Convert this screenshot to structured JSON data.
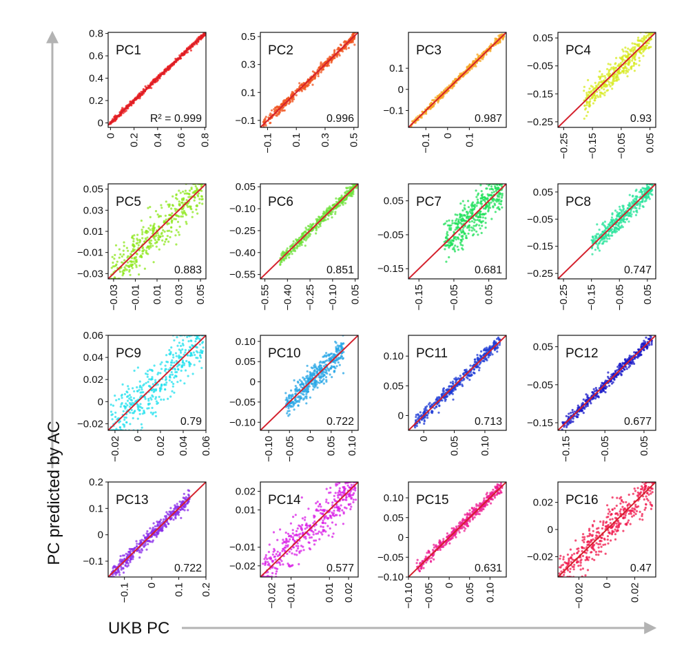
{
  "figure": {
    "ylabel": "PC predicted by AC",
    "xlabel": "UKB PC",
    "arrow_color": "#b3b3b3",
    "identity_line_color": "#d4202c"
  },
  "chart_data": [
    {
      "type": "scatter",
      "title": "PC1",
      "annotation": "R² = 0.999",
      "r2": 0.999,
      "color": "#ee1c1c",
      "spread": 0.01,
      "xlim": [
        -0.02,
        0.81
      ],
      "ylim": [
        -0.04,
        0.81
      ],
      "xticks": [
        "0",
        "0.2",
        "0.4",
        "0.6",
        "0.8"
      ],
      "yticks": [
        "0",
        "0.2",
        "0.4",
        "0.6",
        "0.8"
      ],
      "data_range": [
        -0.01,
        0.8
      ]
    },
    {
      "type": "scatter",
      "title": "PC2",
      "annotation": "0.996",
      "r2": 0.996,
      "color": "#f0521c",
      "spread": 0.018,
      "xlim": [
        -0.15,
        0.53
      ],
      "ylim": [
        -0.15,
        0.53
      ],
      "xticks": [
        "−0.1",
        "0.1",
        "0.3",
        "0.5"
      ],
      "yticks": [
        "−0.1",
        "0.1",
        "0.3",
        "0.5"
      ],
      "data_range": [
        -0.13,
        0.51
      ]
    },
    {
      "type": "scatter",
      "title": "PC3",
      "annotation": "0.987",
      "r2": 0.987,
      "color": "#f5a623",
      "spread": 0.008,
      "xlim": [
        -0.18,
        0.27
      ],
      "ylim": [
        -0.18,
        0.27
      ],
      "xticks": [
        "−0.1",
        "0",
        "0.1"
      ],
      "yticks": [
        "−0.1",
        "0",
        "0.1"
      ],
      "data_range": [
        -0.17,
        0.26
      ]
    },
    {
      "type": "scatter",
      "title": "PC4",
      "annotation": "0.93",
      "r2": 0.93,
      "color": "#d7ea1f",
      "spread": 0.025,
      "xlim": [
        -0.27,
        0.07
      ],
      "ylim": [
        -0.27,
        0.07
      ],
      "xticks": [
        "−0.25",
        "−0.15",
        "−0.05",
        "0.05"
      ],
      "yticks": [
        "−0.25",
        "−0.15",
        "−0.05",
        "0.05"
      ],
      "data_range": [
        -0.18,
        0.06
      ]
    },
    {
      "type": "scatter",
      "title": "PC5",
      "annotation": "0.883",
      "r2": 0.883,
      "color": "#8ee71e",
      "spread": 0.009,
      "xlim": [
        -0.035,
        0.055
      ],
      "ylim": [
        -0.035,
        0.055
      ],
      "xticks": [
        "−0.03",
        "−0.01",
        "0.01",
        "0.03",
        "0.05"
      ],
      "yticks": [
        "−0.03",
        "−0.01",
        "0.01",
        "0.03",
        "0.05"
      ],
      "data_range": [
        -0.033,
        0.052
      ]
    },
    {
      "type": "scatter",
      "title": "PC6",
      "annotation": "0.851",
      "r2": 0.851,
      "color": "#6ee13a",
      "spread": 0.02,
      "xlim": [
        -0.58,
        0.07
      ],
      "ylim": [
        -0.58,
        0.07
      ],
      "xticks": [
        "−0.55",
        "−0.40",
        "−0.25",
        "−0.10",
        "0.05"
      ],
      "yticks": [
        "−0.55",
        "−0.40",
        "−0.25",
        "−0.10",
        "0.05"
      ],
      "data_range": [
        -0.45,
        0.06
      ]
    },
    {
      "type": "scatter",
      "title": "PC7",
      "annotation": "0.681",
      "r2": 0.681,
      "color": "#1fe05a",
      "spread": 0.03,
      "xlim": [
        -0.18,
        0.1
      ],
      "ylim": [
        -0.18,
        0.1
      ],
      "xticks": [
        "−0.15",
        "−0.05",
        "0.05"
      ],
      "yticks": [
        "−0.15",
        "−0.05",
        "0.05"
      ],
      "data_range": [
        -0.08,
        0.09
      ]
    },
    {
      "type": "scatter",
      "title": "PC8",
      "annotation": "0.747",
      "r2": 0.747,
      "color": "#27e39a",
      "spread": 0.02,
      "xlim": [
        -0.27,
        0.08
      ],
      "ylim": [
        -0.27,
        0.08
      ],
      "xticks": [
        "−0.25",
        "−0.15",
        "−0.05",
        "0.05"
      ],
      "yticks": [
        "−0.25",
        "−0.15",
        "−0.05",
        "0.05"
      ],
      "data_range": [
        -0.15,
        0.07
      ]
    },
    {
      "type": "scatter",
      "title": "PC9",
      "annotation": "0.79",
      "r2": 0.79,
      "color": "#22e0ee",
      "spread": 0.012,
      "xlim": [
        -0.026,
        0.06
      ],
      "ylim": [
        -0.026,
        0.06
      ],
      "xticks": [
        "−0.02",
        "0",
        "0.02",
        "0.04",
        "0.06"
      ],
      "yticks": [
        "−0.02",
        "0",
        "0.02",
        "0.04",
        "0.06"
      ],
      "data_range": [
        -0.024,
        0.058
      ]
    },
    {
      "type": "scatter",
      "title": "PC10",
      "annotation": "0.722",
      "r2": 0.722,
      "color": "#27a5e6",
      "spread": 0.016,
      "xlim": [
        -0.12,
        0.115
      ],
      "ylim": [
        -0.12,
        0.115
      ],
      "xticks": [
        "−0.10",
        "−0.05",
        "0",
        "0.05",
        "0.10"
      ],
      "yticks": [
        "−0.10",
        "−0.05",
        "0",
        "0.05",
        "0.10"
      ],
      "data_range": [
        -0.06,
        0.08
      ]
    },
    {
      "type": "scatter",
      "title": "PC11",
      "annotation": "0.713",
      "r2": 0.713,
      "color": "#1e3bd6",
      "spread": 0.006,
      "xlim": [
        -0.025,
        0.135
      ],
      "ylim": [
        -0.025,
        0.135
      ],
      "xticks": [
        "0",
        "0.05",
        "0.10"
      ],
      "yticks": [
        "0",
        "0.05",
        "0.10"
      ],
      "data_range": [
        -0.015,
        0.125
      ]
    },
    {
      "type": "scatter",
      "title": "PC12",
      "annotation": "0.677",
      "r2": 0.677,
      "color": "#1818c8",
      "spread": 0.008,
      "xlim": [
        -0.17,
        0.08
      ],
      "ylim": [
        -0.17,
        0.08
      ],
      "xticks": [
        "−0.15",
        "−0.05",
        "0.05"
      ],
      "yticks": [
        "−0.15",
        "−0.05",
        "0.05"
      ],
      "data_range": [
        -0.16,
        0.07
      ]
    },
    {
      "type": "scatter",
      "title": "PC13",
      "annotation": "0.722",
      "r2": 0.722,
      "color": "#8a2be8",
      "spread": 0.015,
      "xlim": [
        -0.16,
        0.2
      ],
      "ylim": [
        -0.16,
        0.2
      ],
      "xticks": [
        "−0.1",
        "0",
        "0.1",
        "0.2"
      ],
      "yticks": [
        "−0.1",
        "0",
        "0.1",
        "0.2"
      ],
      "data_range": [
        -0.15,
        0.14
      ]
    },
    {
      "type": "scatter",
      "title": "PC14",
      "annotation": "0.577",
      "r2": 0.577,
      "color": "#d81ee6",
      "spread": 0.006,
      "xlim": [
        -0.026,
        0.025
      ],
      "ylim": [
        -0.026,
        0.025
      ],
      "xticks": [
        "−0.02",
        "−0.01",
        "0.01",
        "0.02"
      ],
      "yticks": [
        "−0.02",
        "−0.01",
        "0.01",
        "0.02"
      ],
      "data_range": [
        -0.025,
        0.024
      ]
    },
    {
      "type": "scatter",
      "title": "PC15",
      "annotation": "0.631",
      "r2": 0.631,
      "color": "#ee1c92",
      "spread": 0.008,
      "xlim": [
        -0.1,
        0.14
      ],
      "ylim": [
        -0.1,
        0.14
      ],
      "xticks": [
        "−0.10",
        "−0.05",
        "0",
        "0.05",
        "0.10"
      ],
      "yticks": [
        "−0.10",
        "−0.05",
        "0",
        "0.05",
        "0.10"
      ],
      "data_range": [
        -0.08,
        0.13
      ]
    },
    {
      "type": "scatter",
      "title": "PC16",
      "annotation": "0.47",
      "r2": 0.47,
      "color": "#f0184c",
      "spread": 0.007,
      "xlim": [
        -0.035,
        0.035
      ],
      "ylim": [
        -0.035,
        0.035
      ],
      "xticks": [
        "−0.02",
        "0",
        "0.02"
      ],
      "yticks": [
        "−0.02",
        "0",
        "0.02"
      ],
      "data_range": [
        -0.034,
        0.034
      ]
    }
  ]
}
